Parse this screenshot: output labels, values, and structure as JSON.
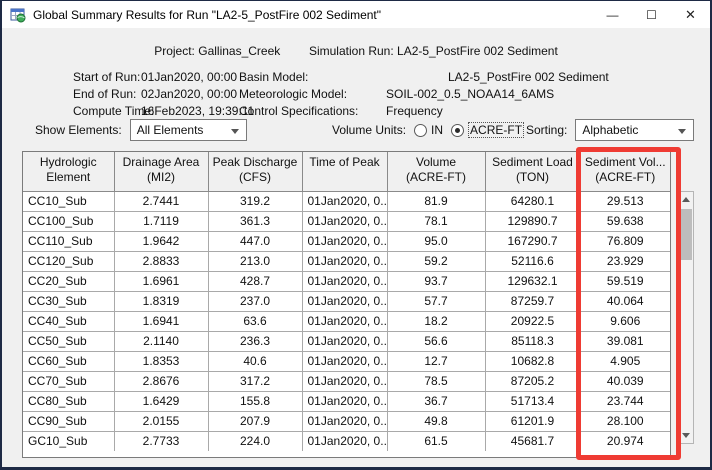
{
  "window": {
    "title": "Global Summary Results for Run \"LA2-5_PostFire 002 Sediment\"",
    "controls": {
      "minimize": "—",
      "maximize": "☐",
      "close": "✕"
    }
  },
  "header": {
    "project_label": "Project:",
    "project_value": "Gallinas_Creek",
    "sim_run_label": "Simulation Run:",
    "sim_run_value": "LA2-5_PostFire 002 Sediment",
    "left_rows": [
      {
        "label": "Start of Run:",
        "value": "01Jan2020, 00:00"
      },
      {
        "label": "End of Run:",
        "value": "02Jan2020, 00:00"
      },
      {
        "label": "Compute Time:",
        "value": "16Feb2023, 19:39:11"
      }
    ],
    "right_rows": [
      {
        "label": "Basin Model:",
        "value": "LA2-5_PostFire 002 Sediment"
      },
      {
        "label": "Meteorologic Model:",
        "value": "SOIL-002_0.5_NOAA14_6AMS"
      },
      {
        "label": "Control Specifications:",
        "value": "Frequency"
      }
    ]
  },
  "controls": {
    "show_elements_label": "Show Elements:",
    "show_elements_value": "All Elements",
    "volume_units_label": "Volume Units:",
    "radio_in_label": "IN",
    "radio_acre_ft_label": "ACRE-FT",
    "selected_units": "ACRE-FT",
    "sorting_label": "Sorting:",
    "sorting_value": "Alphabetic"
  },
  "table": {
    "columns": [
      {
        "line1": "Hydrologic",
        "line2": "Element"
      },
      {
        "line1": "Drainage Area",
        "line2": "(MI2)"
      },
      {
        "line1": "Peak Discharge",
        "line2": "(CFS)"
      },
      {
        "line1": "Time of Peak",
        "line2": ""
      },
      {
        "line1": "Volume",
        "line2": "(ACRE-FT)"
      },
      {
        "line1": "Sediment Load",
        "line2": "(TON)"
      },
      {
        "line1": "Sediment Vol...",
        "line2": "(ACRE-FT)"
      }
    ],
    "rows": [
      [
        "CC10_Sub",
        "2.7441",
        "319.2",
        "01Jan2020, 0...",
        "81.9",
        "64280.1",
        "29.513"
      ],
      [
        "CC100_Sub",
        "1.7119",
        "361.3",
        "01Jan2020, 0...",
        "78.1",
        "129890.7",
        "59.638"
      ],
      [
        "CC110_Sub",
        "1.9642",
        "447.0",
        "01Jan2020, 0...",
        "95.0",
        "167290.7",
        "76.809"
      ],
      [
        "CC120_Sub",
        "2.8833",
        "213.0",
        "01Jan2020, 0...",
        "59.2",
        "52116.6",
        "23.929"
      ],
      [
        "CC20_Sub",
        "1.6961",
        "428.7",
        "01Jan2020, 0...",
        "93.7",
        "129632.1",
        "59.519"
      ],
      [
        "CC30_Sub",
        "1.8319",
        "237.0",
        "01Jan2020, 0...",
        "57.7",
        "87259.7",
        "40.064"
      ],
      [
        "CC40_Sub",
        "1.6941",
        "63.6",
        "01Jan2020, 0...",
        "18.2",
        "20922.5",
        "9.606"
      ],
      [
        "CC50_Sub",
        "2.1140",
        "236.3",
        "01Jan2020, 0...",
        "56.6",
        "85118.3",
        "39.081"
      ],
      [
        "CC60_Sub",
        "1.8353",
        "40.6",
        "01Jan2020, 0...",
        "12.7",
        "10682.8",
        "4.905"
      ],
      [
        "CC70_Sub",
        "2.8676",
        "317.2",
        "01Jan2020, 0...",
        "78.5",
        "87205.2",
        "40.039"
      ],
      [
        "CC80_Sub",
        "1.6429",
        "155.8",
        "01Jan2020, 0...",
        "36.7",
        "51713.4",
        "23.744"
      ],
      [
        "CC90_Sub",
        "2.0155",
        "207.9",
        "01Jan2020, 0...",
        "49.8",
        "61201.9",
        "28.100"
      ],
      [
        "GC10_Sub",
        "2.7733",
        "224.0",
        "01Jan2020, 0...",
        "61.5",
        "45681.7",
        "20.974"
      ]
    ]
  },
  "annotation": {
    "highlight_color": "#ef3b33"
  }
}
